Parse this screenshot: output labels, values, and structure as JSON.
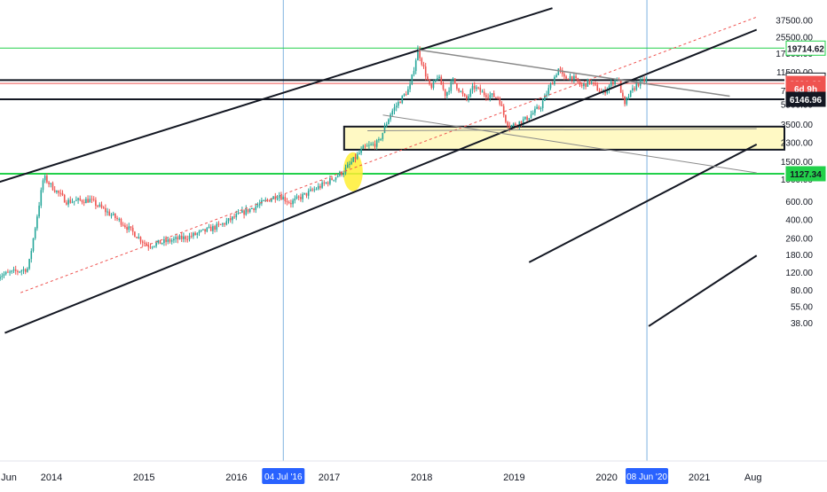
{
  "chart_data": {
    "type": "candlestick",
    "scale": "log",
    "y_ticks": [
      "37500.00",
      "25500.00",
      "17500.00",
      "11500.00",
      "7500.00",
      "5500.00",
      "3500.00",
      "2300.00",
      "1500.00",
      "1000.00",
      "600.00",
      "400.00",
      "260.00",
      "180.00",
      "120.00",
      "80.00",
      "55.00",
      "38.00"
    ],
    "x_ticks": [
      "Jun",
      "2014",
      "2015",
      "2016",
      "2017",
      "2018",
      "2019",
      "2020",
      "2021",
      "Aug"
    ],
    "date_badges": [
      "04 Jul '16",
      "08 Jun '20"
    ],
    "price_labels": [
      {
        "text": "19714.62",
        "value": 19714.62,
        "bg": "#ffffff",
        "border": "#22d04a",
        "color": "#131722"
      },
      {
        "text": "9508.77",
        "value": 9508.77,
        "bg": "#ffffff",
        "border": "#131722",
        "color": "#131722"
      },
      {
        "text": "8821.23",
        "value": 8821.23,
        "bg": "#ef5350",
        "border": "#ef5350",
        "color": "#ffffff"
      },
      {
        "text": "6d 9h",
        "value": 7850,
        "bg": "#ef5350",
        "border": "#ef5350",
        "color": "#ffffff"
      },
      {
        "text": "6146.96",
        "value": 6146.96,
        "bg": "#131722",
        "border": "#131722",
        "color": "#ffffff"
      },
      {
        "text": "1127.34",
        "value": 1127.34,
        "bg": "#22d04a",
        "border": "#22d04a",
        "color": "#131722"
      }
    ],
    "horizontal_levels": [
      {
        "value": 19714.62,
        "color": "#22d04a",
        "width": 1
      },
      {
        "value": 9508.77,
        "color": "#131722",
        "width": 2
      },
      {
        "value": 8821.23,
        "color": "#ef5350",
        "width": 1
      },
      {
        "value": 6146.96,
        "color": "#131722",
        "width": 2
      },
      {
        "value": 1127.34,
        "color": "#22d04a",
        "width": 2
      }
    ],
    "zone": {
      "top": 3300,
      "bottom": 1950,
      "fill": "#fff9c4",
      "border": "#131722"
    },
    "highlight": {
      "date": "2017-04-05",
      "price": 1180,
      "color": "#ffee33"
    },
    "colors": {
      "up": "#26a69a",
      "down": "#ef5350",
      "channel": "#131722",
      "trend": "#8a8a8a",
      "regression": "#ef5350",
      "vline": "#7eb1e0",
      "axis_text": "#131722"
    }
  }
}
